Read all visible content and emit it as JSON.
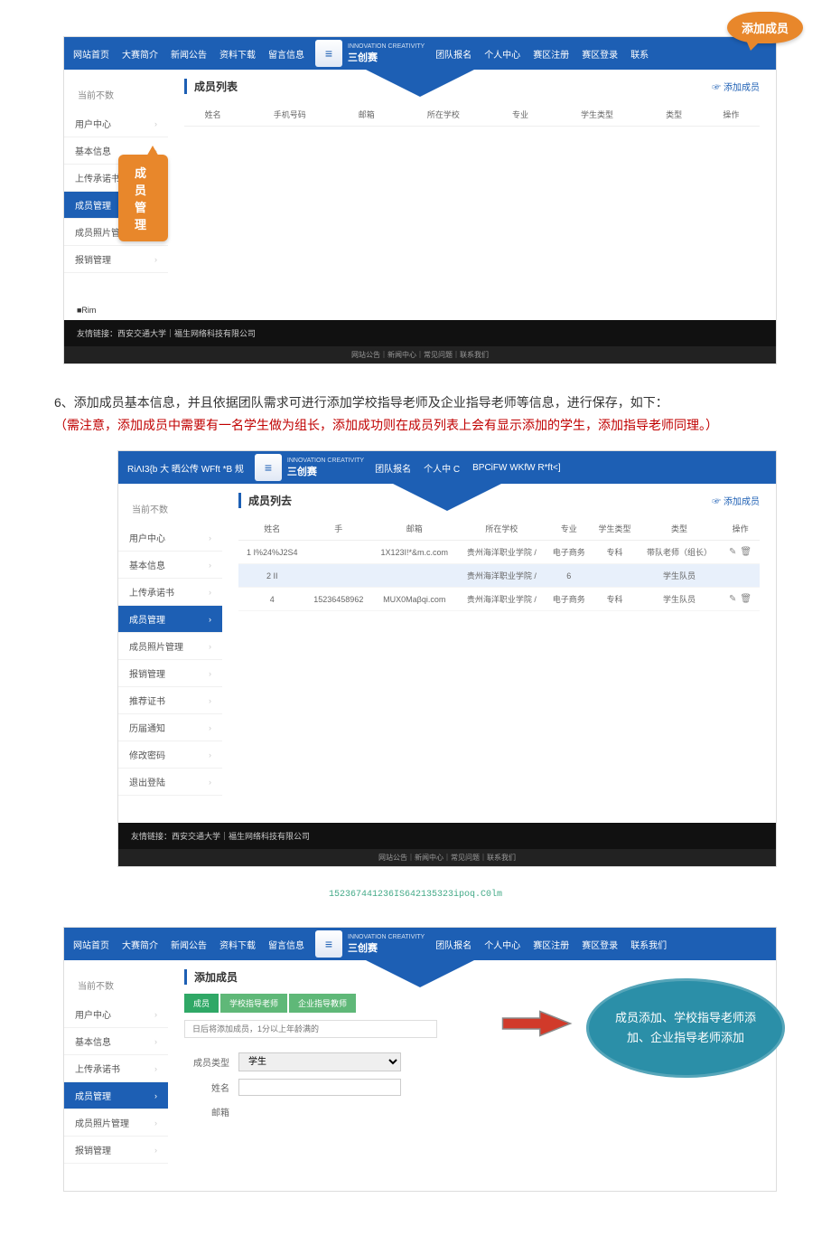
{
  "nav": {
    "items_left": [
      "网站首页",
      "大赛简介",
      "新闻公告",
      "资料下载",
      "留言信息"
    ],
    "items_right_1": [
      "团队报名",
      "个人中心",
      "赛区注册",
      "赛区登录",
      "联系"
    ],
    "items_right_2": [
      "团队报名",
      "个人中 C",
      "BPCiFW WKfW R*ft<]"
    ],
    "items_right_3": [
      "团队报名",
      "个人中心",
      "赛区注册",
      "赛区登录",
      "联系我们"
    ],
    "nav2_left": "RiΛI3{b 大 晒公传 WFft *B 规",
    "logo_text": "三创赛",
    "logo_sub": "INNOVATION CREATIVITY"
  },
  "breadcrumb": "当前不数",
  "sidebar": {
    "items1": [
      "用户中心",
      "基本信息",
      "上传承诺书",
      "成员管理",
      "成员照片管理",
      "报销管理"
    ],
    "active1": 3,
    "items2": [
      "用户中心",
      "基本信息",
      "上传承诺书",
      "成员管理",
      "成员照片管理",
      "报销管理",
      "推荐证书",
      "历届通知",
      "修改密码",
      "退出登陆"
    ],
    "active2": 3,
    "items3": [
      "用户中心",
      "基本信息",
      "上传承诺书",
      "成员管理",
      "成员照片管理",
      "报销管理"
    ],
    "active3": 3
  },
  "panel": {
    "title1": "成员列表",
    "title2": "成员列去",
    "title3": "添加成员",
    "add_link": "添加成员"
  },
  "table": {
    "headers": [
      "姓名",
      "手机号码",
      "邮箱",
      "所在学校",
      "专业",
      "学生类型",
      "类型",
      "操作"
    ],
    "headers2": [
      "姓名",
      "手",
      "邮箱",
      "所在学校",
      "专业",
      "学生类型",
      "类型",
      "操作"
    ],
    "rows2": [
      {
        "idx": "1",
        "name": "I%24%J2S4",
        "phone": "",
        "email": "1X123I!*&m.c.com",
        "school": "贵州海洋职业学院 /",
        "major": "电子商务",
        "stype": "专科",
        "type": "带队老师（组长）",
        "hl": false
      },
      {
        "idx": "2",
        "name": "II",
        "phone": "",
        "email": "",
        "school": "贵州海洋职业学院 /",
        "major": "6",
        "stype": "",
        "type": "学生队员",
        "hl": true
      },
      {
        "idx": "4",
        "name": "",
        "phone": "15236458962",
        "email": "MUX0Maβqi.com ",
        "school": "贵州海洋职业学院 /",
        "major": "电子商务",
        "stype": "专科",
        "type": "学生队员",
        "hl": false
      }
    ]
  },
  "callouts": {
    "add_member": "添加成员",
    "member_mgmt": "成员管理",
    "oval": "成员添加、学校指导老师添加、企业指导老师添加"
  },
  "footer": {
    "line1": "友情链接：西安交通大学｜福生网络科技有限公司",
    "line2": "网站公告｜新闻中心｜常见问题｜联系我们",
    "rim": "■Rim"
  },
  "instruction": {
    "black": "6、添加成员基本信息，并且依据团队需求可进行添加学校指导老师及企业指导老师等信息，进行保存，如下：",
    "red": "（需注意，添加成员中需要有一名学生做为组长，添加成功则在成员列表上会有显示添加的学生，添加指导老师同理。）"
  },
  "codeline": "152367441236IS642135323ipoq.C0lm",
  "form": {
    "tabs": [
      "成员",
      "学校指导老师",
      "企业指导教师"
    ],
    "hint": "日后将添加成员，1分以上年龄满的",
    "label_type": "成员类型",
    "type_val": "学生",
    "label_name": "姓名",
    "label_email": "邮箱"
  },
  "colors": {
    "primary": "#1d5fb4",
    "orange": "#e8872b",
    "green": "#2fa866",
    "teal": "#2b8fa8",
    "arrow_fill": "#d13a2a",
    "arrow_border": "#8a8a8a"
  }
}
